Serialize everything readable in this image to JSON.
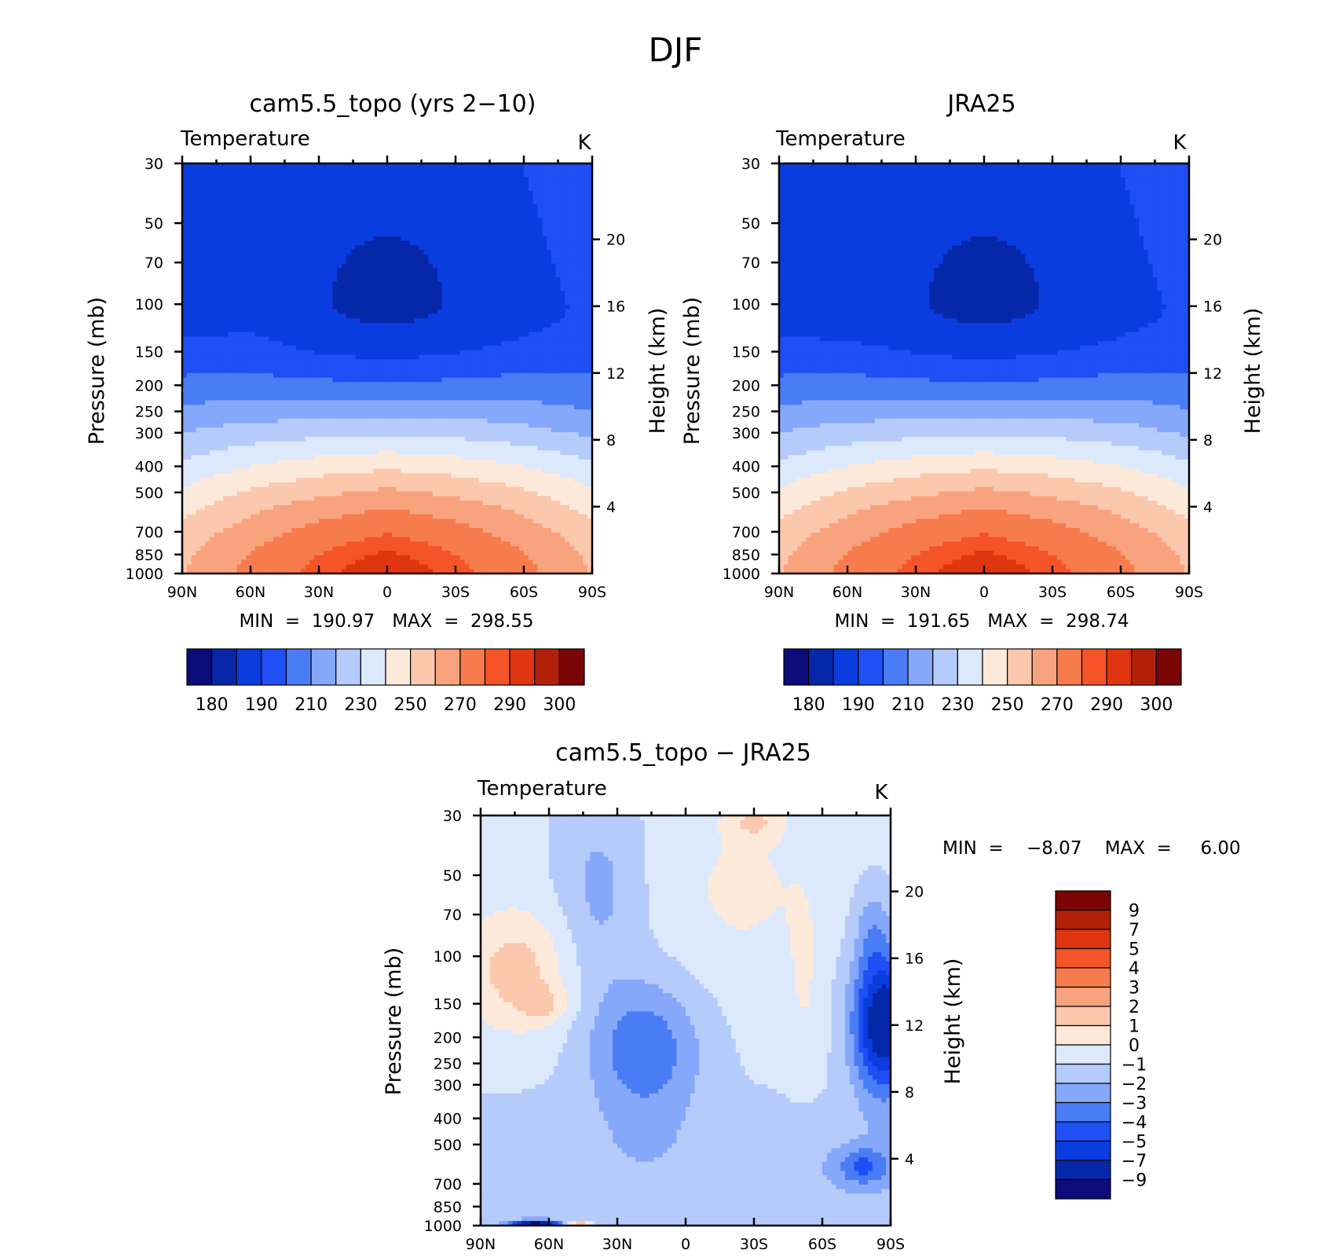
{
  "figure": {
    "title": "DJF"
  },
  "chart_data": [
    {
      "type": "heatmap",
      "subtype": "filled-contour latitude-pressure cross section",
      "title": "cam5.5_topo (yrs 2−10)",
      "variable_label": "Temperature",
      "units_label": "K",
      "xlabel": "",
      "ylabel": "Pressure (mb)",
      "y2label": "Height (km)",
      "x_ticks": [
        "90N",
        "60N",
        "30N",
        "0",
        "30S",
        "60S",
        "90S"
      ],
      "x_tick_values": [
        90,
        60,
        30,
        0,
        -30,
        -60,
        -90
      ],
      "y_ticks": [
        30,
        50,
        70,
        100,
        150,
        200,
        250,
        300,
        400,
        500,
        700,
        850,
        1000
      ],
      "y_scale": "log",
      "y_range": [
        1000,
        30
      ],
      "y2_ticks": [
        4,
        8,
        12,
        16,
        20
      ],
      "min_text": "MIN  =  190.97   MAX  =  298.55",
      "min": 190.97,
      "max": 298.55,
      "colorbar": {
        "orientation": "horizontal",
        "labels": [
          "180",
          "190",
          "210",
          "230",
          "250",
          "270",
          "290",
          "300"
        ],
        "colors": [
          "#0b0b7a",
          "#0527a8",
          "#0a3de0",
          "#1f4ff5",
          "#4a7cf5",
          "#86a8fa",
          "#b5cbfb",
          "#dce9fc",
          "#fde9d9",
          "#fbc7ad",
          "#f9a37e",
          "#f67c4e",
          "#f55428",
          "#df3511",
          "#b3200a",
          "#7a0505"
        ]
      }
    },
    {
      "type": "heatmap",
      "subtype": "filled-contour latitude-pressure cross section",
      "title": "JRA25",
      "variable_label": "Temperature",
      "units_label": "K",
      "xlabel": "",
      "ylabel": "Pressure (mb)",
      "y2label": "Height (km)",
      "x_ticks": [
        "90N",
        "60N",
        "30N",
        "0",
        "30S",
        "60S",
        "90S"
      ],
      "x_tick_values": [
        90,
        60,
        30,
        0,
        -30,
        -60,
        -90
      ],
      "y_ticks": [
        30,
        50,
        70,
        100,
        150,
        200,
        250,
        300,
        400,
        500,
        700,
        850,
        1000
      ],
      "y_scale": "log",
      "y_range": [
        1000,
        30
      ],
      "y2_ticks": [
        4,
        8,
        12,
        16,
        20
      ],
      "min_text": "MIN  =  191.65   MAX  =  298.74",
      "min": 191.65,
      "max": 298.74,
      "colorbar": {
        "orientation": "horizontal",
        "labels": [
          "180",
          "190",
          "210",
          "230",
          "250",
          "270",
          "290",
          "300"
        ],
        "colors": [
          "#0b0b7a",
          "#0527a8",
          "#0a3de0",
          "#1f4ff5",
          "#4a7cf5",
          "#86a8fa",
          "#b5cbfb",
          "#dce9fc",
          "#fde9d9",
          "#fbc7ad",
          "#f9a37e",
          "#f67c4e",
          "#f55428",
          "#df3511",
          "#b3200a",
          "#7a0505"
        ]
      }
    },
    {
      "type": "heatmap",
      "subtype": "filled-contour latitude-pressure cross section (difference)",
      "title": "cam5.5_topo − JRA25",
      "variable_label": "Temperature",
      "units_label": "K",
      "xlabel": "",
      "ylabel": "Pressure (mb)",
      "y2label": "Height (km)",
      "x_ticks": [
        "90N",
        "60N",
        "30N",
        "0",
        "30S",
        "60S",
        "90S"
      ],
      "x_tick_values": [
        90,
        60,
        30,
        0,
        -30,
        -60,
        -90
      ],
      "y_ticks": [
        30,
        50,
        70,
        100,
        150,
        200,
        250,
        300,
        400,
        500,
        700,
        850,
        1000
      ],
      "y_scale": "log",
      "y_range": [
        1000,
        30
      ],
      "y2_ticks": [
        4,
        8,
        12,
        16,
        20
      ],
      "min_text": "MIN  =    −8.07    MAX  =     6.00",
      "min": -8.07,
      "max": 6.0,
      "colorbar": {
        "orientation": "vertical",
        "labels": [
          "9",
          "7",
          "5",
          "4",
          "3",
          "2",
          "1",
          "0",
          "−1",
          "−2",
          "−3",
          "−4",
          "−5",
          "−7",
          "−9"
        ],
        "colors": [
          "#7a0505",
          "#b3200a",
          "#df3511",
          "#f55428",
          "#f67c4e",
          "#f9a37e",
          "#fbc7ad",
          "#fde9d9",
          "#dce9fc",
          "#b5cbfb",
          "#86a8fa",
          "#4a7cf5",
          "#1f4ff5",
          "#0a3de0",
          "#0527a8",
          "#0b0b7a"
        ]
      }
    }
  ]
}
